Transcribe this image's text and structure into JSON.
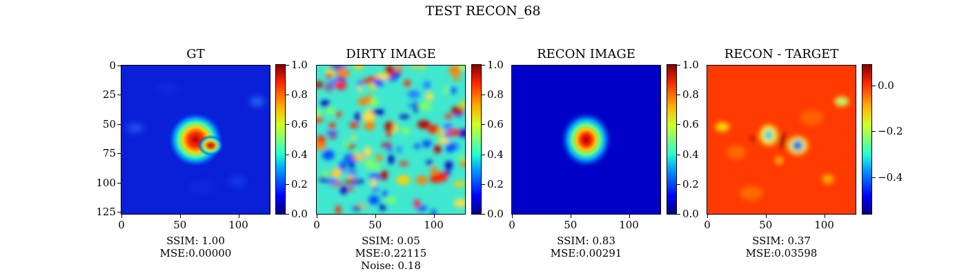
{
  "suptitle": "TEST RECON_68",
  "panels": [
    {
      "title": "GT",
      "ssim": "SSIM: 1.00",
      "mse": "MSE:0.00000",
      "noise": ""
    },
    {
      "title": "DIRTY IMAGE",
      "ssim": "SSIM: 0.05",
      "mse": "MSE:0.22115",
      "noise": "Noise: 0.18"
    },
    {
      "title": "RECON IMAGE",
      "ssim": "SSIM: 0.83",
      "mse": "MSE:0.00291",
      "noise": ""
    },
    {
      "title": "RECON - TARGET",
      "ssim": "SSIM: 0.37",
      "mse": "MSE:0.03598",
      "noise": ""
    }
  ],
  "y_ticks": [
    "0",
    "25",
    "50",
    "75",
    "100",
    "125"
  ],
  "x_ticks": [
    "0",
    "50",
    "100"
  ],
  "colorbar_ticks_01": [
    "0.0",
    "0.2",
    "0.4",
    "0.6",
    "0.8",
    "1.0"
  ],
  "colorbar_ticks_diff": [
    "0.0",
    "−0.2",
    "−0.4"
  ],
  "chart_data": [
    {
      "type": "heatmap",
      "title": "GT",
      "colormap": "jet",
      "x_range": [
        0,
        128
      ],
      "y_range": [
        0,
        128
      ],
      "clim": [
        0.0,
        1.0
      ]
    },
    {
      "type": "heatmap",
      "title": "DIRTY IMAGE",
      "colormap": "jet",
      "x_range": [
        0,
        128
      ],
      "y_range": [
        0,
        128
      ],
      "clim": [
        0.0,
        1.0
      ]
    },
    {
      "type": "heatmap",
      "title": "RECON IMAGE",
      "colormap": "jet",
      "x_range": [
        0,
        128
      ],
      "y_range": [
        0,
        128
      ],
      "clim": [
        0.0,
        1.0
      ]
    },
    {
      "type": "heatmap",
      "title": "RECON - TARGET",
      "colormap": "jet",
      "x_range": [
        0,
        128
      ],
      "y_range": [
        0,
        128
      ],
      "clim": [
        -0.56,
        0.09
      ]
    }
  ],
  "colors": {
    "jet_low": "#00007f",
    "jet_high": "#7f0000"
  }
}
